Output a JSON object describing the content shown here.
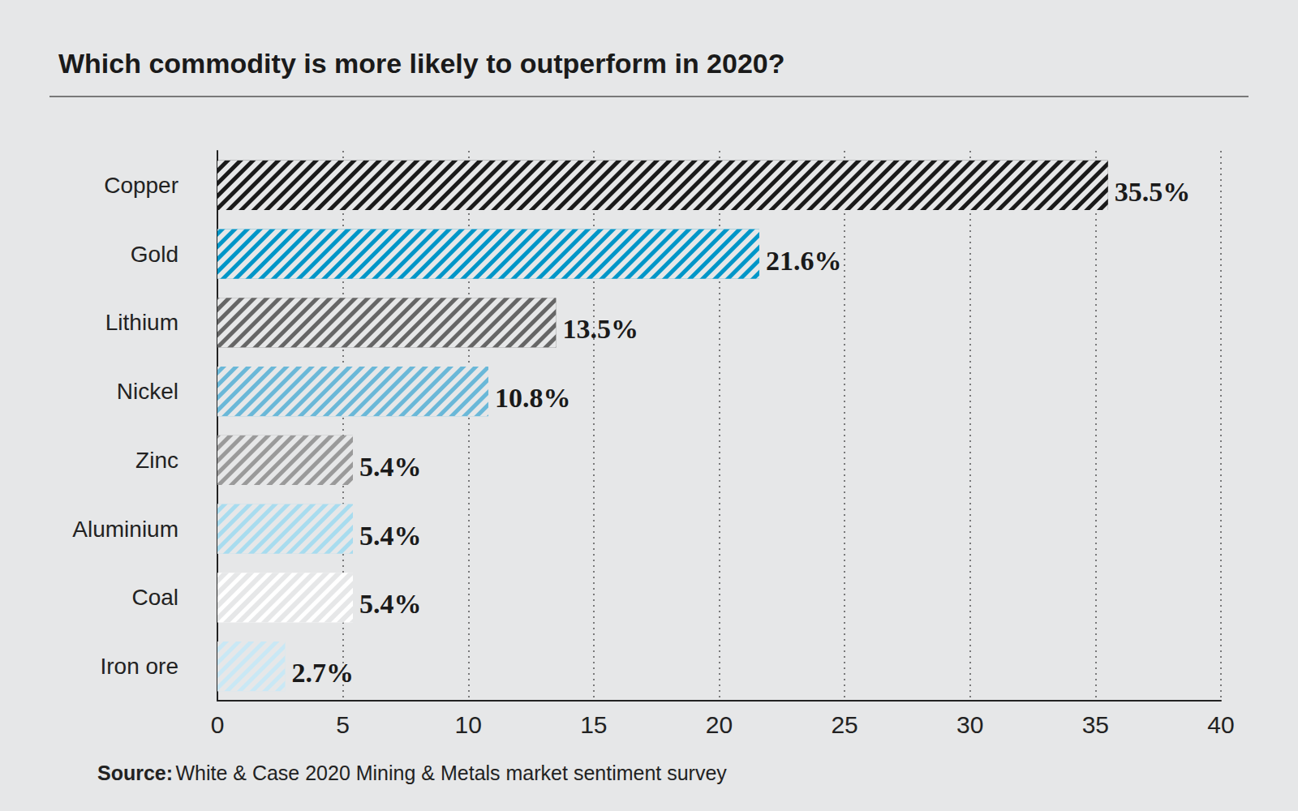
{
  "chart_data": {
    "type": "bar",
    "orientation": "horizontal",
    "title": "Which commodity is more likely to outperform in 2020?",
    "categories": [
      "Copper",
      "Gold",
      "Lithium",
      "Nickel",
      "Zinc",
      "Aluminium",
      "Coal",
      "Iron ore"
    ],
    "values": [
      35.5,
      21.6,
      13.5,
      10.8,
      5.4,
      5.4,
      5.4,
      2.7
    ],
    "value_labels": [
      "35.5%",
      "21.6%",
      "13.5%",
      "10.8%",
      "5.4%",
      "5.4%",
      "5.4%",
      "2.7%"
    ],
    "colors": [
      "#1a1a1a",
      "#0096c8",
      "#666666",
      "#6ab8d8",
      "#9a9a9a",
      "#a8dcef",
      "#ffffff",
      "#c9e8f5"
    ],
    "xlim": [
      0,
      40
    ],
    "xticks": [
      0,
      5,
      10,
      15,
      20,
      25,
      30,
      35,
      40
    ],
    "grid": true,
    "data_labels": true,
    "source_label": "Source:",
    "source": "White & Case 2020 Mining & Metals market sentiment survey"
  }
}
